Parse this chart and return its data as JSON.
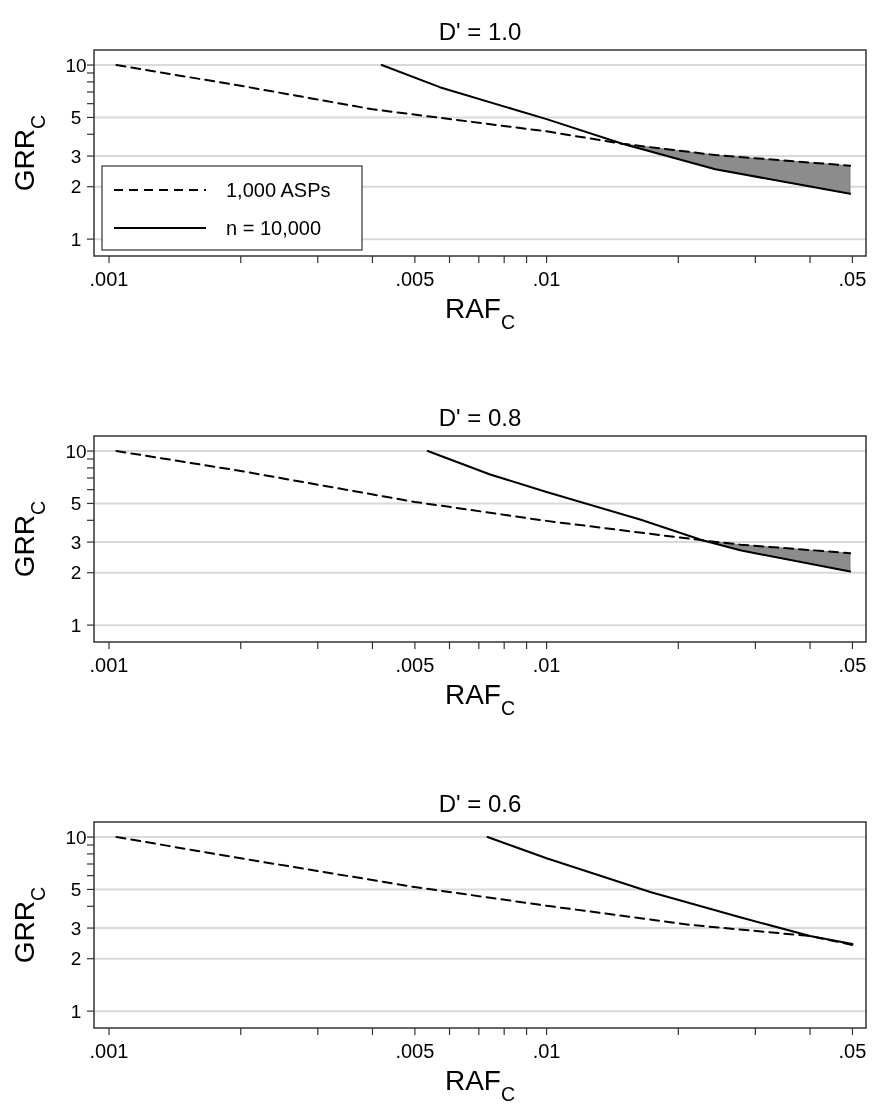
{
  "chart_data": [
    {
      "type": "line",
      "title": "D' = 1.0",
      "xlabel": "RAF$_{C}$",
      "ylabel": "GRR$_{C}$",
      "log": "xy",
      "grid": "y",
      "legend": "bottom left",
      "xlim": [
        0.000924,
        0.0537
      ],
      "ylim": [
        0.8,
        12.2
      ],
      "xticks": [
        {
          "value": 0.001,
          "label": ".001"
        },
        {
          "value": 0.002,
          "label": null
        },
        {
          "value": 0.003,
          "label": null
        },
        {
          "value": 0.004,
          "label": null
        },
        {
          "value": 0.005,
          "label": ".005"
        },
        {
          "value": 0.006,
          "label": null
        },
        {
          "value": 0.007,
          "label": null
        },
        {
          "value": 0.008,
          "label": null
        },
        {
          "value": 0.009,
          "label": null
        },
        {
          "value": 0.01,
          "label": ".01"
        },
        {
          "value": 0.02,
          "label": null
        },
        {
          "value": 0.03,
          "label": null
        },
        {
          "value": 0.04,
          "label": null
        },
        {
          "value": 0.05,
          "label": ".05"
        }
      ],
      "yticks": [
        1,
        2,
        3,
        {
          "value": 4,
          "label": null
        },
        5,
        {
          "value": 6,
          "label": null
        },
        {
          "value": 7,
          "label": null
        },
        {
          "value": 8,
          "label": null
        },
        {
          "value": 9,
          "label": null
        },
        10
      ],
      "series": [
        {
          "name": "1,000 ASPs",
          "color": "#000000",
          "line_style": "dashed",
          "x": [
            0.00104,
            0.002,
            0.004,
            0.01,
            0.0149,
            0.0243,
            0.0494
          ],
          "values": [
            10,
            7.6,
            5.57,
            4.16,
            3.53,
            3.04,
            2.64
          ],
          "lower": [
            null,
            null,
            null,
            null,
            3.53,
            2.52,
            1.82
          ],
          "upper": [
            null,
            null,
            null,
            null,
            3.53,
            3.04,
            2.64
          ]
        },
        {
          "name": "n = 10,000",
          "color": "#000000",
          "line_style": "solid",
          "x": [
            0.0042,
            0.0057,
            0.01,
            0.0149,
            0.0243,
            0.0494
          ],
          "values": [
            10,
            7.46,
            4.89,
            3.53,
            2.52,
            1.82
          ]
        }
      ]
    },
    {
      "type": "line",
      "title": "D' = 0.8",
      "xlabel": "RAF$_{C}$",
      "ylabel": "GRR$_{C}$",
      "log": "xy",
      "grid": "y",
      "xlim": [
        0.000924,
        0.0537
      ],
      "ylim": [
        0.8,
        12.2
      ],
      "xticks": [
        {
          "value": 0.001,
          "label": ".001"
        },
        {
          "value": 0.002,
          "label": null
        },
        {
          "value": 0.003,
          "label": null
        },
        {
          "value": 0.004,
          "label": null
        },
        {
          "value": 0.005,
          "label": ".005"
        },
        {
          "value": 0.006,
          "label": null
        },
        {
          "value": 0.007,
          "label": null
        },
        {
          "value": 0.008,
          "label": null
        },
        {
          "value": 0.009,
          "label": null
        },
        {
          "value": 0.01,
          "label": ".01"
        },
        {
          "value": 0.02,
          "label": null
        },
        {
          "value": 0.03,
          "label": null
        },
        {
          "value": 0.04,
          "label": null
        },
        {
          "value": 0.05,
          "label": ".05"
        }
      ],
      "yticks": [
        1,
        2,
        3,
        {
          "value": 4,
          "label": null
        },
        5,
        {
          "value": 6,
          "label": null
        },
        {
          "value": 7,
          "label": null
        },
        {
          "value": 8,
          "label": null
        },
        {
          "value": 9,
          "label": null
        },
        10
      ],
      "series": [
        {
          "color": "#000000",
          "line_style": "dashed",
          "x": [
            0.00104,
            0.002,
            0.005,
            0.01,
            0.0227,
            0.0277,
            0.0494
          ],
          "values": [
            10,
            7.68,
            5.1,
            3.97,
            3.07,
            2.9,
            2.59
          ],
          "lower": [
            null,
            null,
            null,
            null,
            3.07,
            2.69,
            2.03
          ],
          "upper": [
            null,
            null,
            null,
            null,
            3.07,
            2.9,
            2.59
          ]
        },
        {
          "color": "#000000",
          "line_style": "solid",
          "x": [
            0.00535,
            0.00743,
            0.01,
            0.01636,
            0.0227,
            0.0277,
            0.0494
          ],
          "values": [
            10,
            7.33,
            5.82,
            4.04,
            3.07,
            2.69,
            2.03
          ]
        }
      ]
    },
    {
      "type": "line",
      "title": "D' = 0.6",
      "xlabel": "RAF$_{C}$",
      "ylabel": "GRR$_{C}$",
      "log": "xy",
      "grid": "y",
      "xlim": [
        0.000924,
        0.0537
      ],
      "ylim": [
        0.8,
        12.2
      ],
      "xticks": [
        {
          "value": 0.001,
          "label": ".001"
        },
        {
          "value": 0.002,
          "label": null
        },
        {
          "value": 0.003,
          "label": null
        },
        {
          "value": 0.004,
          "label": null
        },
        {
          "value": 0.005,
          "label": ".005"
        },
        {
          "value": 0.006,
          "label": null
        },
        {
          "value": 0.007,
          "label": null
        },
        {
          "value": 0.008,
          "label": null
        },
        {
          "value": 0.009,
          "label": null
        },
        {
          "value": 0.01,
          "label": ".01"
        },
        {
          "value": 0.02,
          "label": null
        },
        {
          "value": 0.03,
          "label": null
        },
        {
          "value": 0.04,
          "label": null
        },
        {
          "value": 0.05,
          "label": ".05"
        }
      ],
      "yticks": [
        1,
        2,
        3,
        {
          "value": 4,
          "label": null
        },
        5,
        {
          "value": 6,
          "label": null
        },
        {
          "value": 7,
          "label": null
        },
        {
          "value": 8,
          "label": null
        },
        {
          "value": 9,
          "label": null
        },
        10
      ],
      "series": [
        {
          "color": "#000000",
          "line_style": "dashed",
          "x": [
            0.00104,
            0.002,
            0.005,
            0.01,
            0.0213,
            0.04,
            0.05
          ],
          "values": [
            10,
            7.55,
            5.16,
            4.03,
            3.13,
            2.7,
            2.4
          ]
        },
        {
          "color": "#000000",
          "line_style": "solid",
          "x": [
            0.00733,
            0.01,
            0.01725,
            0.0277,
            0.04,
            0.05
          ],
          "values": [
            10,
            7.55,
            4.83,
            3.46,
            2.7,
            2.43
          ]
        }
      ]
    }
  ]
}
